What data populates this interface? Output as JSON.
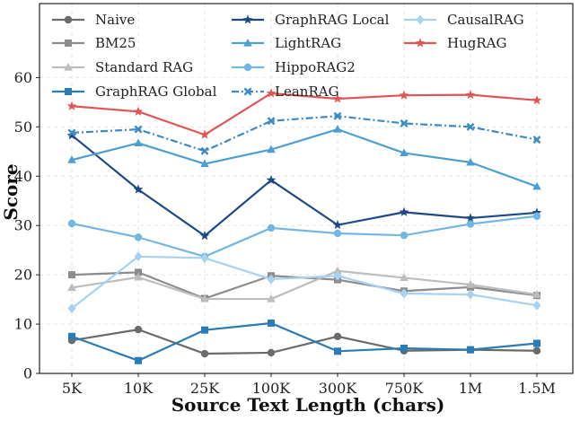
{
  "chart_data": {
    "type": "line",
    "title": "",
    "xlabel": "Source Text Length (chars)",
    "ylabel": "Score",
    "categories": [
      "5K",
      "10K",
      "25K",
      "100K",
      "300K",
      "750K",
      "1M",
      "1.5M"
    ],
    "ylim": [
      0,
      75
    ],
    "yticks": [
      0,
      10,
      20,
      30,
      40,
      50,
      60
    ],
    "grid": true,
    "legend_position": "top",
    "series": [
      {
        "name": "Naive",
        "color": "#6b6b6b",
        "marker": "circle",
        "dash": "solid",
        "values": [
          6.7,
          8.9,
          4.0,
          4.2,
          7.5,
          4.6,
          4.8,
          4.6
        ]
      },
      {
        "name": "BM25",
        "color": "#8c8c8c",
        "marker": "square",
        "dash": "solid",
        "values": [
          20.0,
          20.5,
          15.2,
          19.8,
          19.0,
          16.7,
          17.5,
          15.8
        ]
      },
      {
        "name": "Standard RAG",
        "color": "#bdbdbd",
        "marker": "triangle",
        "dash": "solid",
        "values": [
          17.4,
          19.5,
          15.1,
          15.1,
          20.8,
          19.4,
          18.0,
          16.0
        ]
      },
      {
        "name": "GraphRAG Global",
        "color": "#2b7bb4",
        "marker": "square",
        "dash": "solid",
        "values": [
          7.5,
          2.6,
          8.8,
          10.2,
          4.5,
          5.1,
          4.8,
          6.1
        ]
      },
      {
        "name": "GraphRAG Local",
        "color": "#1d4a86",
        "marker": "star",
        "dash": "solid",
        "values": [
          48.3,
          37.3,
          27.9,
          39.2,
          30.1,
          32.7,
          31.5,
          32.6
        ]
      },
      {
        "name": "LightRAG",
        "color": "#4d9fd0",
        "marker": "triangle",
        "dash": "solid",
        "values": [
          43.3,
          46.7,
          42.5,
          45.4,
          49.5,
          44.7,
          42.8,
          37.9
        ]
      },
      {
        "name": "HippoRAG2",
        "color": "#74b6e0",
        "marker": "circle",
        "dash": "solid",
        "values": [
          30.4,
          27.6,
          23.7,
          29.5,
          28.4,
          28.0,
          30.3,
          31.9
        ]
      },
      {
        "name": "LeanRAG",
        "color": "#3d8ac4",
        "marker": "x",
        "dash": "dashdot",
        "values": [
          48.8,
          49.5,
          45.1,
          51.2,
          52.2,
          50.7,
          50.0,
          47.4
        ]
      },
      {
        "name": "CausalRAG",
        "color": "#a8d2ef",
        "marker": "diamond",
        "dash": "solid",
        "values": [
          13.2,
          23.7,
          23.4,
          19.1,
          19.8,
          16.2,
          16.0,
          13.8
        ]
      },
      {
        "name": "HugRAG",
        "color": "#e05656",
        "marker": "star",
        "dash": "solid",
        "values": [
          54.2,
          53.1,
          48.4,
          56.8,
          55.7,
          56.4,
          56.5,
          55.4
        ]
      }
    ]
  }
}
